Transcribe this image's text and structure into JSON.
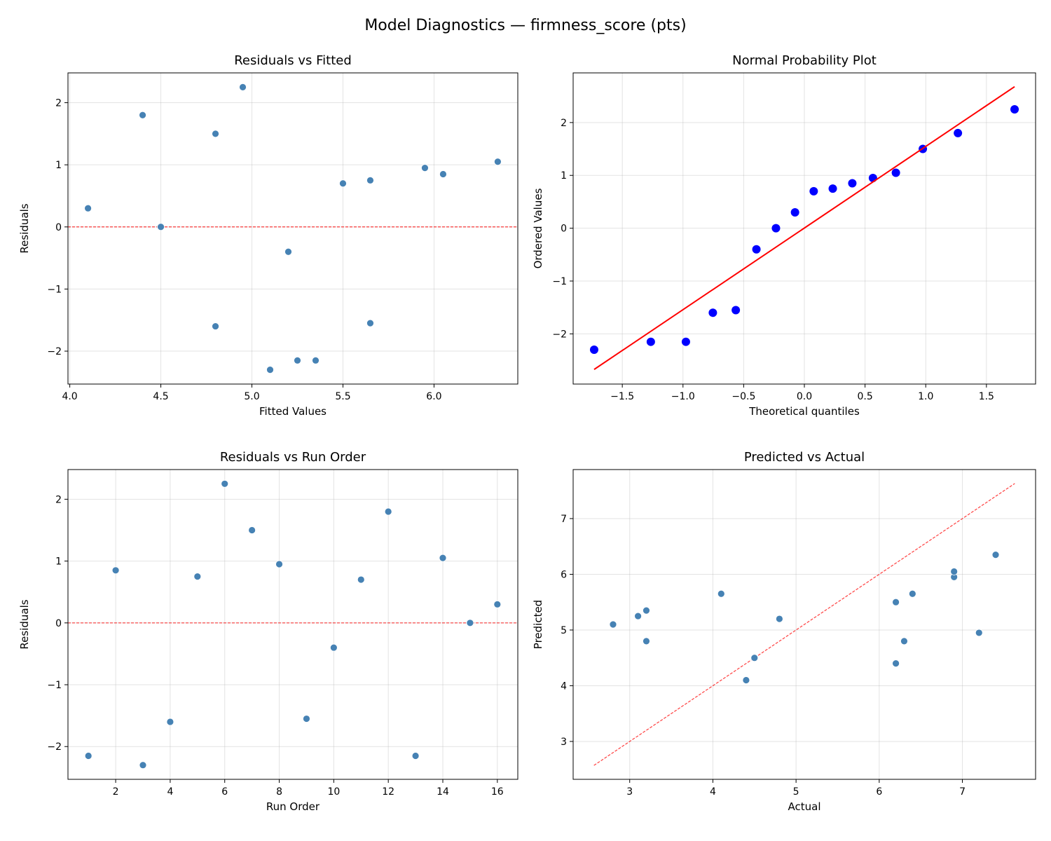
{
  "suptitle": "Model Diagnostics — firmness_score (pts)",
  "colors": {
    "scatter": "#4682b4",
    "qq_points": "#0000ff",
    "qq_line": "#ff0000",
    "ref_line": "#ff0000"
  },
  "chart_data": [
    {
      "type": "scatter",
      "title": "Residuals vs Fitted",
      "xlabel": "Fitted Values",
      "ylabel": "Residuals",
      "xlim": [
        3.99,
        6.46
      ],
      "ylim": [
        -2.53,
        2.48
      ],
      "xticks": [
        4.0,
        4.5,
        5.0,
        5.5,
        6.0
      ],
      "xtick_labels": [
        "4.0",
        "4.5",
        "5.0",
        "5.5",
        "6.0"
      ],
      "yticks": [
        -2,
        -1,
        0,
        1,
        2
      ],
      "ytick_labels": [
        "−2",
        "−1",
        "0",
        "1",
        "2"
      ],
      "grid": true,
      "hline": {
        "y": 0,
        "style": "dashed",
        "color": "#ff0000"
      },
      "x": [
        4.1,
        4.4,
        4.5,
        4.8,
        4.8,
        4.95,
        5.1,
        5.2,
        5.25,
        5.35,
        5.5,
        5.65,
        5.65,
        5.95,
        6.05,
        6.35
      ],
      "y": [
        0.3,
        1.8,
        0.0,
        1.5,
        -1.6,
        2.25,
        -2.3,
        -0.4,
        -2.15,
        -2.15,
        0.7,
        0.75,
        -1.55,
        0.95,
        0.85,
        1.05
      ]
    },
    {
      "type": "scatter",
      "title": "Normal Probability Plot",
      "xlabel": "Theoretical quantiles",
      "ylabel": "Ordered Values",
      "xlim": [
        -1.905,
        1.905
      ],
      "ylim": [
        -2.95,
        2.94
      ],
      "xticks": [
        -1.5,
        -1.0,
        -0.5,
        0.0,
        0.5,
        1.0,
        1.5
      ],
      "xtick_labels": [
        "−1.5",
        "−1.0",
        "−0.5",
        "0.0",
        "0.5",
        "1.0",
        "1.5"
      ],
      "yticks": [
        -2,
        -1,
        0,
        1,
        2
      ],
      "ytick_labels": [
        "−2",
        "−1",
        "0",
        "1",
        "2"
      ],
      "grid": true,
      "fit_line": {
        "slope": 1.545,
        "intercept": 0.003,
        "x_range": [
          -1.732,
          1.732
        ],
        "color": "#ff0000"
      },
      "x": [
        -1.732,
        -1.265,
        -0.976,
        -0.754,
        -0.565,
        -0.395,
        -0.234,
        -0.077,
        0.077,
        0.234,
        0.395,
        0.565,
        0.754,
        0.976,
        1.265,
        1.732
      ],
      "y": [
        -2.3,
        -2.15,
        -2.15,
        -1.6,
        -1.55,
        -0.4,
        0.0,
        0.3,
        0.7,
        0.75,
        0.85,
        0.95,
        1.05,
        1.5,
        1.8,
        2.25
      ]
    },
    {
      "type": "scatter",
      "title": "Residuals vs Run Order",
      "xlabel": "Run Order",
      "ylabel": "Residuals",
      "xlim": [
        0.25,
        16.75
      ],
      "ylim": [
        -2.53,
        2.48
      ],
      "xticks": [
        2,
        4,
        6,
        8,
        10,
        12,
        14,
        16
      ],
      "xtick_labels": [
        "2",
        "4",
        "6",
        "8",
        "10",
        "12",
        "14",
        "16"
      ],
      "yticks": [
        -2,
        -1,
        0,
        1,
        2
      ],
      "ytick_labels": [
        "−2",
        "−1",
        "0",
        "1",
        "2"
      ],
      "grid": true,
      "hline": {
        "y": 0,
        "style": "dashed",
        "color": "#ff0000"
      },
      "x": [
        1,
        2,
        3,
        4,
        5,
        6,
        7,
        8,
        9,
        10,
        11,
        12,
        13,
        14,
        15,
        16
      ],
      "y": [
        -2.15,
        0.85,
        -2.3,
        -1.6,
        0.75,
        2.25,
        1.5,
        0.95,
        -1.55,
        -0.4,
        0.7,
        1.8,
        -2.15,
        1.05,
        0.0,
        0.3
      ]
    },
    {
      "type": "scatter",
      "title": "Predicted vs Actual",
      "xlabel": "Actual",
      "ylabel": "Predicted",
      "xlim": [
        2.32,
        7.88
      ],
      "ylim": [
        2.32,
        7.88
      ],
      "xticks": [
        3,
        4,
        5,
        6,
        7
      ],
      "xtick_labels": [
        "3",
        "4",
        "5",
        "6",
        "7"
      ],
      "yticks": [
        3,
        4,
        5,
        6,
        7
      ],
      "ytick_labels": [
        "3",
        "4",
        "5",
        "6",
        "7"
      ],
      "grid": true,
      "diag_line": {
        "range": [
          2.57,
          7.63
        ],
        "style": "dashed",
        "color": "#ff0000"
      },
      "x": [
        4.4,
        6.2,
        4.5,
        6.3,
        3.2,
        7.2,
        2.8,
        4.8,
        3.1,
        3.2,
        6.2,
        6.4,
        4.1,
        6.9,
        6.9,
        7.4
      ],
      "y": [
        4.1,
        4.4,
        4.5,
        4.8,
        4.8,
        4.95,
        5.1,
        5.2,
        5.25,
        5.35,
        5.5,
        5.65,
        5.65,
        5.95,
        6.05,
        6.35
      ]
    }
  ]
}
